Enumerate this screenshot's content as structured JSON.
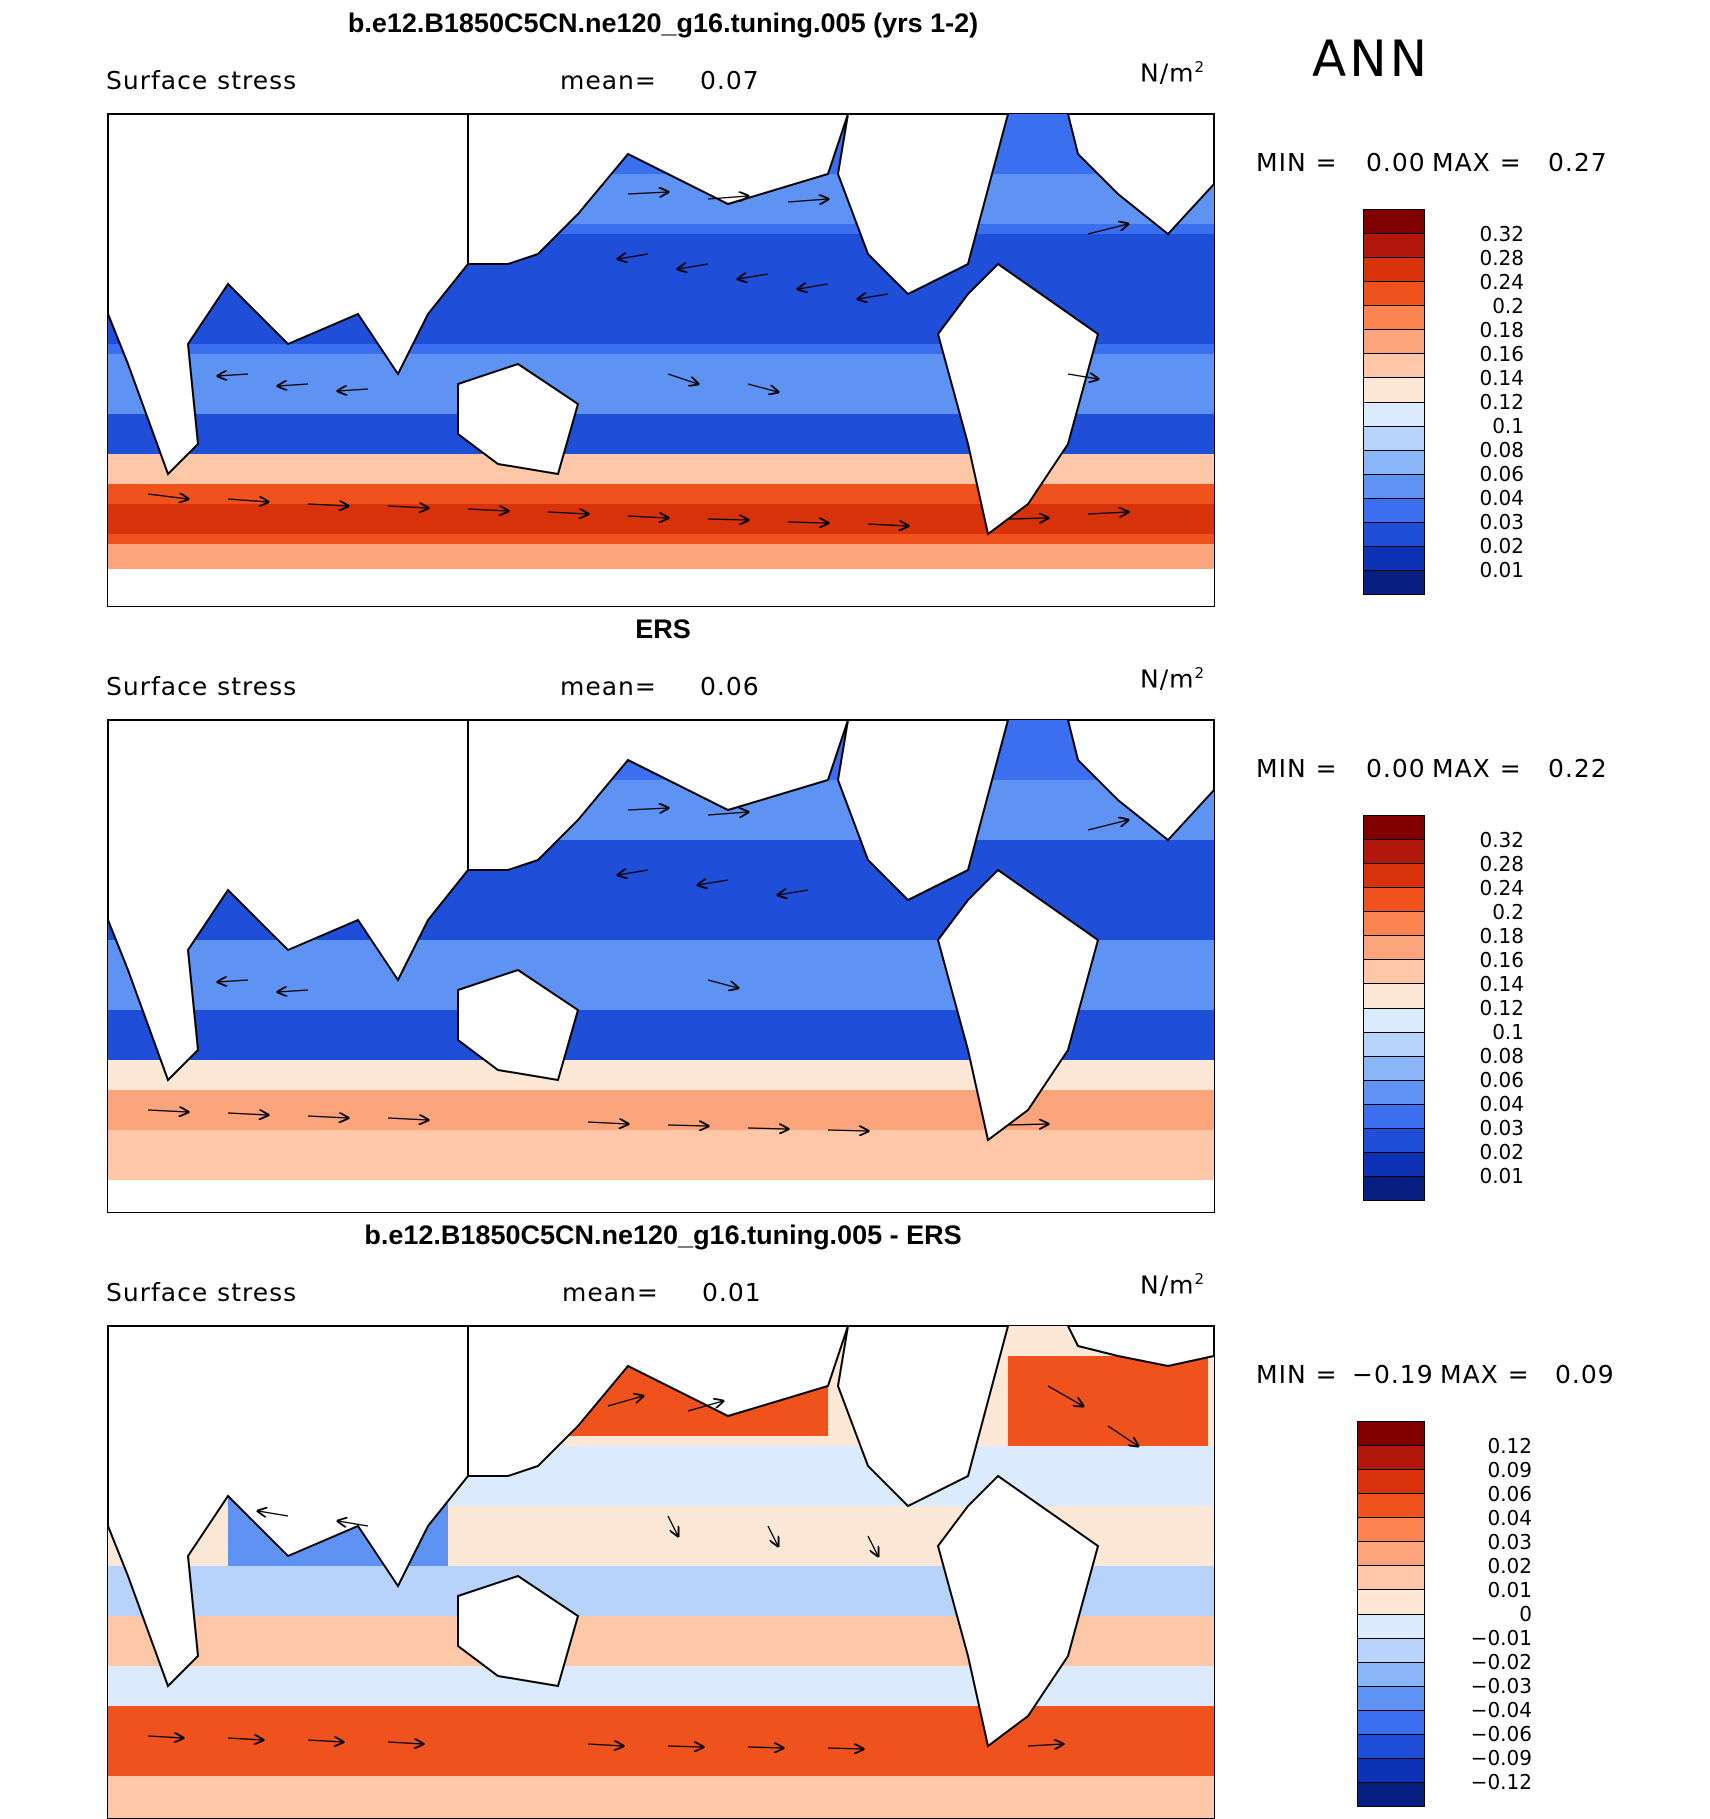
{
  "season": "ANN",
  "panels": [
    {
      "title": "b.e12.B1850C5CN.ne120_g16.tuning.005 (yrs 1-2)",
      "variable": "Surface stress",
      "mean_label": "mean=",
      "mean_value": "0.07",
      "units": "N/m",
      "units_sup": "2",
      "min_label": "MIN =",
      "min_value": "0.00",
      "max_label": "MAX =",
      "max_value": "0.27",
      "colorbar_levels": [
        "0.32",
        "0.28",
        "0.24",
        "0.2",
        "0.18",
        "0.16",
        "0.14",
        "0.12",
        "0.1",
        "0.08",
        "0.06",
        "0.04",
        "0.03",
        "0.02",
        "0.01"
      ],
      "colorbar_colors": [
        "#800000",
        "#b2170b",
        "#d8320a",
        "#f0521d",
        "#fb8450",
        "#fca47c",
        "#fdc7a8",
        "#fde7d6",
        "#dbeafc",
        "#b7d3fb",
        "#8bb5f9",
        "#5f93f3",
        "#3b6ff0",
        "#1f4ed8",
        "#0d32b5",
        "#061f80"
      ]
    },
    {
      "title": "ERS",
      "variable": "Surface stress",
      "mean_label": "mean=",
      "mean_value": "0.06",
      "units": "N/m",
      "units_sup": "2",
      "min_label": "MIN =",
      "min_value": "0.00",
      "max_label": "MAX =",
      "max_value": "0.22",
      "colorbar_levels": [
        "0.32",
        "0.28",
        "0.24",
        "0.2",
        "0.18",
        "0.16",
        "0.14",
        "0.12",
        "0.1",
        "0.08",
        "0.06",
        "0.04",
        "0.03",
        "0.02",
        "0.01"
      ],
      "colorbar_colors": [
        "#800000",
        "#b2170b",
        "#d8320a",
        "#f0521d",
        "#fb8450",
        "#fca47c",
        "#fdc7a8",
        "#fde7d6",
        "#dbeafc",
        "#b7d3fb",
        "#8bb5f9",
        "#5f93f3",
        "#3b6ff0",
        "#1f4ed8",
        "#0d32b5",
        "#061f80"
      ]
    },
    {
      "title": "b.e12.B1850C5CN.ne120_g16.tuning.005 - ERS",
      "variable": "Surface stress",
      "mean_label": "mean=",
      "mean_value": "0.01",
      "units": "N/m",
      "units_sup": "2",
      "min_label": "MIN =",
      "min_value": "−0.19",
      "max_label": "MAX =",
      "max_value": "0.09",
      "colorbar_levels": [
        "0.12",
        "0.09",
        "0.06",
        "0.04",
        "0.03",
        "0.02",
        "0.01",
        "0",
        "−0.01",
        "−0.02",
        "−0.03",
        "−0.04",
        "−0.06",
        "−0.09",
        "−0.12"
      ],
      "colorbar_colors": [
        "#800000",
        "#b2170b",
        "#d8320a",
        "#f0521d",
        "#fb8450",
        "#fca47c",
        "#fdc7a8",
        "#fde7d6",
        "#dbeafc",
        "#b7d3fb",
        "#8bb5f9",
        "#5f93f3",
        "#3b6ff0",
        "#1f4ed8",
        "#0d32b5",
        "#061f80"
      ]
    }
  ],
  "chart_data": [
    {
      "type": "heatmap",
      "title": "b.e12.B1850C5CN.ne120_g16.tuning.005 (yrs 1-2)",
      "xlabel": "",
      "ylabel": "",
      "x_range_lon": [
        30,
        390
      ],
      "y_range_lat": [
        -80,
        80
      ],
      "field": "Surface stress",
      "units": "N/m2",
      "mean": 0.07,
      "min": 0.0,
      "max": 0.27,
      "colorbar_levels": [
        0.01,
        0.02,
        0.03,
        0.04,
        0.06,
        0.08,
        0.1,
        0.12,
        0.14,
        0.16,
        0.18,
        0.2,
        0.24,
        0.28,
        0.32
      ],
      "overlay": "wind stress vectors"
    },
    {
      "type": "heatmap",
      "title": "ERS",
      "xlabel": "",
      "ylabel": "",
      "x_range_lon": [
        30,
        390
      ],
      "y_range_lat": [
        -80,
        80
      ],
      "field": "Surface stress",
      "units": "N/m2",
      "mean": 0.06,
      "min": 0.0,
      "max": 0.22,
      "colorbar_levels": [
        0.01,
        0.02,
        0.03,
        0.04,
        0.06,
        0.08,
        0.1,
        0.12,
        0.14,
        0.16,
        0.18,
        0.2,
        0.24,
        0.28,
        0.32
      ],
      "overlay": "wind stress vectors"
    },
    {
      "type": "heatmap",
      "title": "b.e12.B1850C5CN.ne120_g16.tuning.005 - ERS",
      "xlabel": "",
      "ylabel": "",
      "x_range_lon": [
        30,
        390
      ],
      "y_range_lat": [
        -80,
        80
      ],
      "field": "Surface stress",
      "units": "N/m2",
      "mean": 0.01,
      "min": -0.19,
      "max": 0.09,
      "colorbar_levels": [
        -0.12,
        -0.09,
        -0.06,
        -0.04,
        -0.03,
        -0.02,
        -0.01,
        0,
        0.01,
        0.02,
        0.03,
        0.04,
        0.06,
        0.09,
        0.12
      ],
      "overlay": "wind stress difference vectors"
    }
  ]
}
